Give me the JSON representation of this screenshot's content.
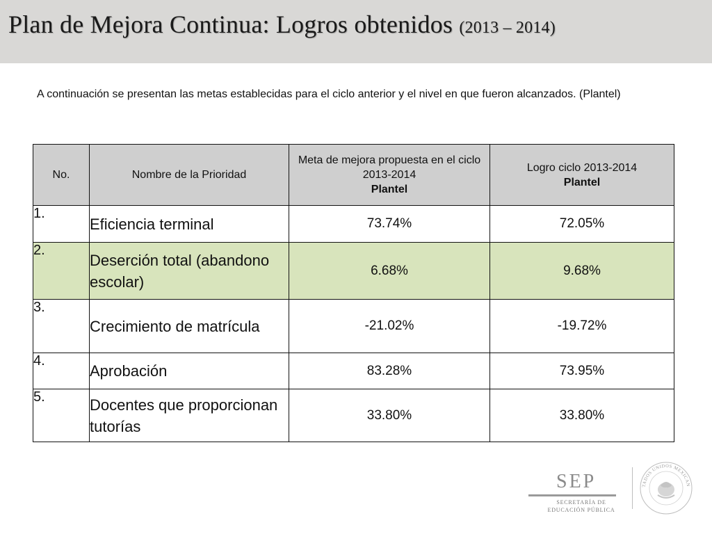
{
  "header": {
    "title": "Plan de Mejora Continua: Logros obtenidos",
    "years": "(2013 – 2014)"
  },
  "intro": "A continuación se presentan las metas establecidas para el ciclo anterior y el nivel en que fueron alcanzados. (Plantel)",
  "table": {
    "headers": {
      "no": "No.",
      "name": "Nombre de la Prioridad",
      "goal_line1": "Meta de mejora propuesta en el ciclo 2013-2014",
      "goal_line2": "Plantel",
      "achievement_line1": "Logro ciclo 2013-2014",
      "achievement_line2": "Plantel"
    },
    "rows": [
      {
        "no": "1.",
        "name": "Eficiencia terminal",
        "goal": "73.74%",
        "achievement": "72.05%"
      },
      {
        "no": "2.",
        "name": "Deserción total (abandono escolar)",
        "goal": "6.68%",
        "achievement": "9.68%"
      },
      {
        "no": "3.",
        "name": "Crecimiento de matrícula",
        "goal": "-21.02%",
        "achievement": "-19.72%"
      },
      {
        "no": "4.",
        "name": "Aprobación",
        "goal": "83.28%",
        "achievement": "73.95%"
      },
      {
        "no": "5.",
        "name": "Docentes que proporcionan tutorías",
        "goal": "33.80%",
        "achievement": "33.80%"
      }
    ],
    "highlight_color": "#d8e4bc",
    "header_color": "#cfcfcf"
  },
  "logos": {
    "sep_word": "SEP",
    "sep_sub_line1": "SECRETARÍA DE",
    "sep_sub_line2": "EDUCACIÓN PÚBLICA",
    "seal_text": "ESTADOS UNIDOS MEXICANOS"
  }
}
